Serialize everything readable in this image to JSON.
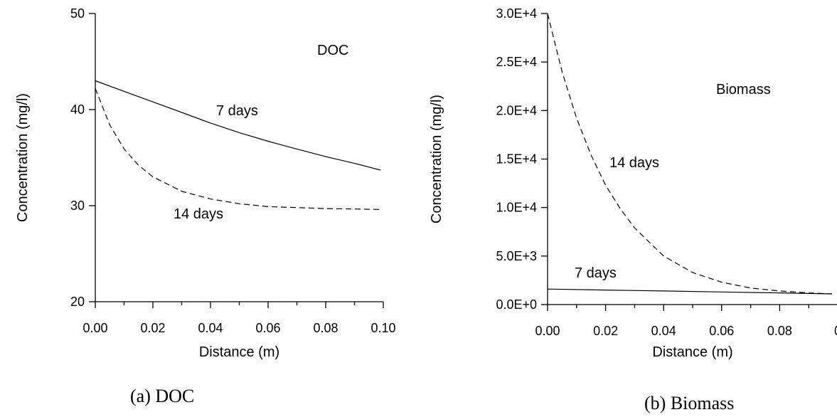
{
  "chart_data": [
    {
      "type": "line",
      "annotation": "DOC",
      "caption": "(a) DOC",
      "xlabel": "Distance (m)",
      "ylabel": "Concentration (mg/l)",
      "xlim": [
        0,
        0.1
      ],
      "ylim": [
        20,
        50
      ],
      "x_ticks": [
        "0.00",
        "0.02",
        "0.04",
        "0.06",
        "0.08",
        "0.10"
      ],
      "y_ticks": [
        "20",
        "30",
        "40",
        "50"
      ],
      "series": [
        {
          "name": "7 days",
          "style": "solid",
          "x": [
            0,
            0.01,
            0.02,
            0.03,
            0.04,
            0.05,
            0.06,
            0.07,
            0.08,
            0.09,
            0.099
          ],
          "y": [
            43.0,
            41.9,
            40.8,
            39.7,
            38.6,
            37.6,
            36.7,
            35.9,
            35.1,
            34.4,
            33.7
          ]
        },
        {
          "name": "14 days",
          "style": "dashed",
          "x": [
            0,
            0.005,
            0.01,
            0.015,
            0.02,
            0.03,
            0.04,
            0.05,
            0.06,
            0.07,
            0.08,
            0.09,
            0.099
          ],
          "y": [
            42.2,
            38.4,
            35.9,
            34.2,
            33.0,
            31.5,
            30.7,
            30.2,
            29.9,
            29.8,
            29.7,
            29.65,
            29.6
          ]
        }
      ]
    },
    {
      "type": "line",
      "annotation": "Biomass",
      "caption": "(b)  Biomass",
      "xlabel": "Distance (m)",
      "ylabel": "Concentration (mg/l)",
      "xlim": [
        0,
        0.1
      ],
      "ylim": [
        0,
        30000
      ],
      "x_ticks": [
        "0.00",
        "0.02",
        "0.04",
        "0.06",
        "0.08",
        "0"
      ],
      "y_ticks": [
        "0.0E+0",
        "5.0E+3",
        "1.0E+4",
        "1.5E+4",
        "2.0E+4",
        "2.5E+4",
        "3.0E+4"
      ],
      "series": [
        {
          "name": "7 days",
          "style": "solid",
          "x": [
            0,
            0.02,
            0.04,
            0.06,
            0.08,
            0.098
          ],
          "y": [
            1600,
            1500,
            1400,
            1300,
            1200,
            1100
          ]
        },
        {
          "name": "14 days",
          "style": "dashed",
          "x": [
            0,
            0.005,
            0.01,
            0.015,
            0.02,
            0.025,
            0.03,
            0.04,
            0.05,
            0.06,
            0.07,
            0.08,
            0.09,
            0.098
          ],
          "y": [
            30000,
            24000,
            19200,
            15400,
            12300,
            9900,
            7900,
            5000,
            3300,
            2300,
            1700,
            1400,
            1200,
            1100
          ]
        }
      ]
    }
  ]
}
